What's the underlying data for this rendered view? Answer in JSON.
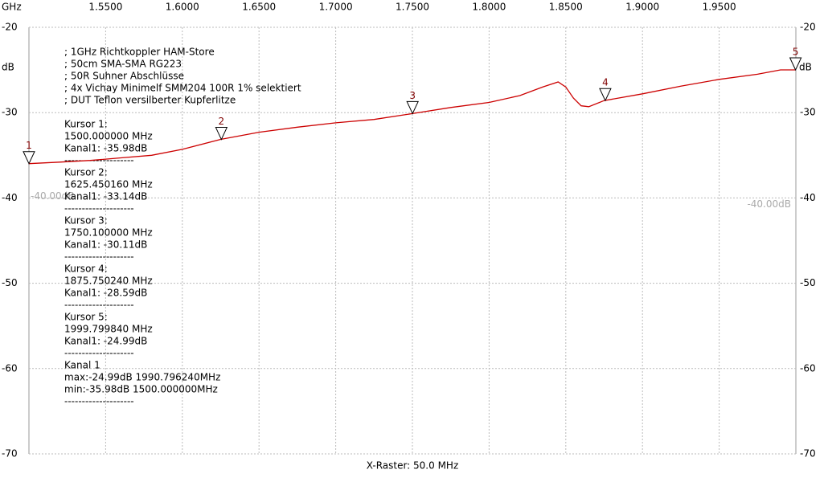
{
  "chart_data": {
    "type": "line",
    "x_unit": "GHz",
    "y_unit": "dB",
    "xlabel": "X-Raster: 50.0 MHz",
    "xlim": [
      1.5,
      2.0
    ],
    "xticks": [
      {
        "value": 1.55,
        "label": "1.5500"
      },
      {
        "value": 1.6,
        "label": "1.6000"
      },
      {
        "value": 1.65,
        "label": "1.6500"
      },
      {
        "value": 1.7,
        "label": "1.7000"
      },
      {
        "value": 1.75,
        "label": "1.7500"
      },
      {
        "value": 1.8,
        "label": "1.8000"
      },
      {
        "value": 1.85,
        "label": "1.8500"
      },
      {
        "value": 1.9,
        "label": "1.9000"
      },
      {
        "value": 1.95,
        "label": "1.9500"
      }
    ],
    "ylim": [
      -70,
      -20
    ],
    "yticks": [
      -20,
      -30,
      -40,
      -50,
      -60,
      -70
    ],
    "grid": true,
    "reference_line": {
      "value": -40,
      "label": "-40.00dB"
    },
    "color": "#cc0000",
    "x": [
      1.5,
      1.52,
      1.54,
      1.56,
      1.58,
      1.6,
      1.625,
      1.65,
      1.675,
      1.7,
      1.725,
      1.75,
      1.775,
      1.8,
      1.82,
      1.835,
      1.845,
      1.85,
      1.855,
      1.86,
      1.865,
      1.875,
      1.9,
      1.925,
      1.95,
      1.975,
      1.99,
      2.0
    ],
    "values": [
      -35.98,
      -35.8,
      -35.6,
      -35.3,
      -35.0,
      -34.3,
      -33.14,
      -32.3,
      -31.7,
      -31.2,
      -30.8,
      -30.11,
      -29.4,
      -28.8,
      -28.0,
      -27.0,
      -26.4,
      -27.0,
      -28.3,
      -29.2,
      -29.3,
      -28.59,
      -27.8,
      -26.9,
      -26.1,
      -25.5,
      -24.99,
      -24.99
    ],
    "markers": [
      {
        "label": "1",
        "x": 1.5,
        "y": -35.98
      },
      {
        "label": "2",
        "x": 1.62545016,
        "y": -33.14
      },
      {
        "label": "3",
        "x": 1.7501,
        "y": -30.11
      },
      {
        "label": "4",
        "x": 1.87575024,
        "y": -28.59
      },
      {
        "label": "5",
        "x": 1.99979984,
        "y": -24.99
      }
    ],
    "notes": [
      "; 1GHz Richtkoppler HAM-Store",
      "; 50cm SMA-SMA RG223",
      "; 50R Suhner Abschlüsse",
      "; 4x Vichay Minimelf SMM204 100R 1% selektiert",
      "; DUT Teflon versilberter Kupferlitze"
    ],
    "cursor_info": [
      [
        "Kursor 1:",
        "1500.000000 MHz",
        "Kanal1: -35.98dB",
        "--------------------"
      ],
      [
        "Kursor 2:",
        "1625.450160 MHz",
        "Kanal1: -33.14dB",
        "--------------------"
      ],
      [
        "Kursor 3:",
        "1750.100000 MHz",
        "Kanal1: -30.11dB",
        "--------------------"
      ],
      [
        "Kursor 4:",
        "1875.750240 MHz",
        "Kanal1: -28.59dB",
        "--------------------"
      ],
      [
        "Kursor 5:",
        "1999.799840 MHz",
        "Kanal1: -24.99dB",
        "--------------------"
      ],
      [
        "Kanal 1",
        "max:-24.99dB 1990.796240MHz",
        "min:-35.98dB 1500.000000MHz",
        "--------------------"
      ]
    ]
  }
}
